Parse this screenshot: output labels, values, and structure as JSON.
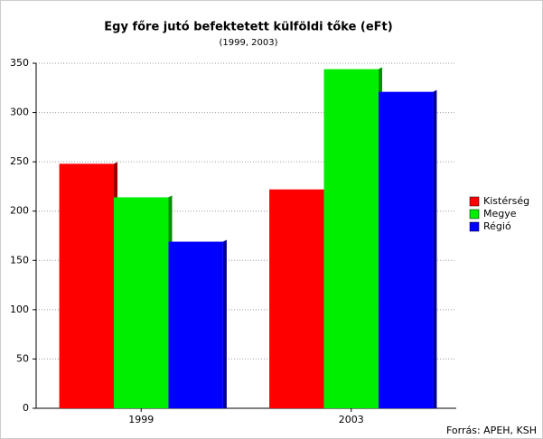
{
  "chart_data": {
    "type": "bar",
    "title": "Egy főre jutó befektetett külföldi tőke (eFt)",
    "subtitle": "(1999, 2003)",
    "source": "Forrás: APEH, KSH",
    "categories": [
      "1999",
      "2003"
    ],
    "series": [
      {
        "name": "Kistérség",
        "color": "#ff0000",
        "values": [
          248,
          222
        ]
      },
      {
        "name": "Megye",
        "color": "#00ee00",
        "values": [
          214,
          344
        ]
      },
      {
        "name": "Régió",
        "color": "#0000ff",
        "values": [
          169,
          321
        ]
      }
    ],
    "ylim": [
      0,
      350
    ],
    "yticks": [
      0,
      50,
      100,
      150,
      200,
      250,
      300,
      350
    ],
    "grid": true,
    "legend": "right"
  }
}
